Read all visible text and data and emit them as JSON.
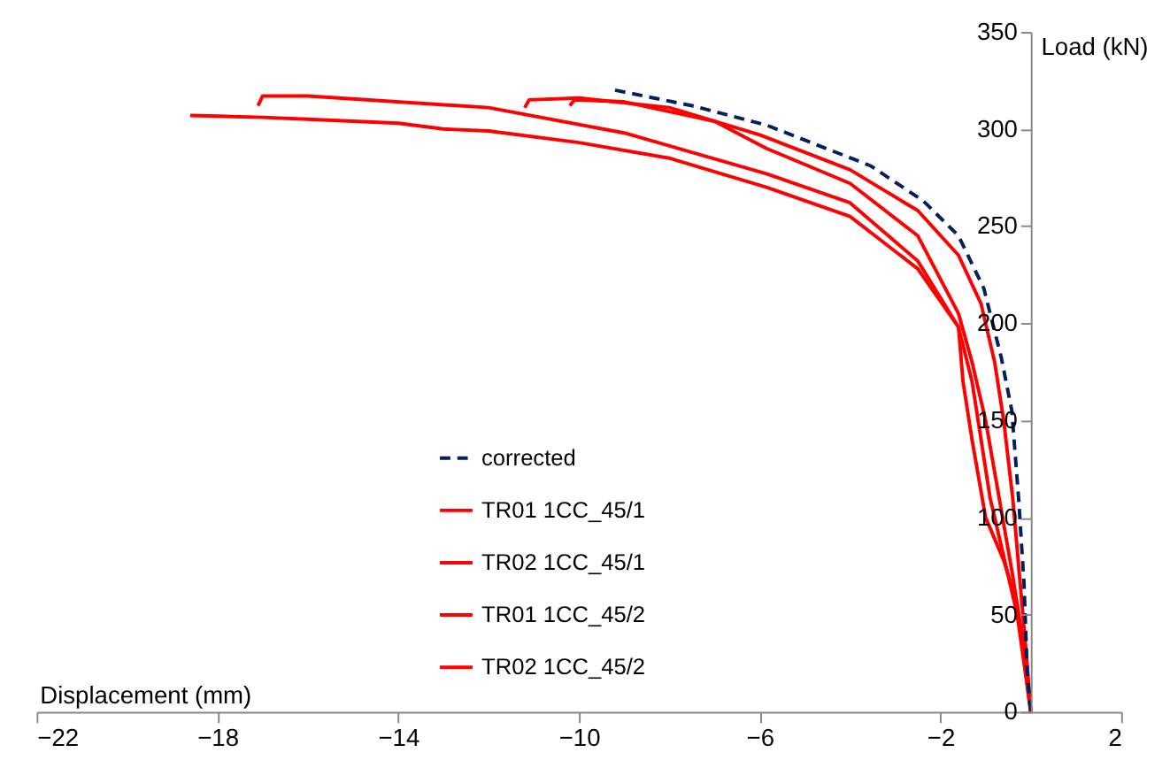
{
  "chart_data": {
    "type": "line",
    "xlabel": "Displacement (mm)",
    "ylabel": "Load (kN)",
    "xlim": [
      -22,
      2
    ],
    "xticks": [
      -22,
      -18,
      -14,
      -10,
      -6,
      -2,
      2
    ],
    "ylim": [
      0,
      350
    ],
    "yticks": [
      0,
      50,
      100,
      150,
      200,
      250,
      300,
      350
    ],
    "grid": false,
    "legend": "bottom left",
    "marker": "none",
    "series": [
      {
        "name": "corrected",
        "color": "#002060",
        "line_style": "dashed",
        "x": [
          -9.2,
          -7.5,
          -5.85,
          -3.54,
          -2.38,
          -1.6,
          -1.04,
          -0.65,
          -0.42,
          -0.27,
          -0.15,
          -0.08,
          0
        ],
        "values": [
          320,
          312,
          302,
          281,
          263,
          245,
          218,
          182,
          155,
          110,
          66,
          21,
          0
        ]
      },
      {
        "name": "TR01 1CC_45/1",
        "color": "#ff0000",
        "line_style": "solid",
        "x": [
          -11.2,
          -11.1,
          -10,
          -8,
          -6,
          -4,
          -2.5,
          -1.6,
          -1.1,
          -0.8,
          -0.6,
          -0.4,
          -0.25,
          -0.1,
          0
        ],
        "values": [
          311,
          315,
          316,
          311,
          297,
          279,
          258,
          235,
          210,
          180,
          150,
          110,
          70,
          30,
          0
        ]
      },
      {
        "name": "TR02 1CC_45/1",
        "color": "#ff0000",
        "line_style": "solid",
        "x": [
          -10.2,
          -10.1,
          -9,
          -7,
          -5.85,
          -4,
          -2.5,
          -1.6,
          -1.3,
          -1,
          -0.7,
          -0.4,
          -0.2,
          0
        ],
        "values": [
          312,
          315,
          314,
          304,
          290,
          272,
          245,
          205,
          180,
          150,
          110,
          70,
          40,
          0
        ]
      },
      {
        "name": "TR01 1CC_45/2",
        "color": "#ff0000",
        "line_style": "solid",
        "x": [
          -17.1,
          -17,
          -16,
          -12,
          -9,
          -5.85,
          -4,
          -2.5,
          -1.6,
          -1.3,
          -1.1,
          -0.9,
          -0.6,
          -0.3,
          0
        ],
        "values": [
          312,
          317,
          317,
          311,
          298,
          277,
          262,
          232,
          198,
          170,
          140,
          110,
          80,
          50,
          0
        ]
      },
      {
        "name": "TR02 1CC_45/2",
        "color": "#ff0000",
        "line_style": "solid",
        "x": [
          -18.6,
          -17,
          -16,
          -14,
          -13,
          -12,
          -10,
          -8,
          -5.85,
          -4,
          -2.5,
          -1.6,
          -1.5,
          -1.3,
          -1,
          -0.6,
          -0.3,
          0
        ],
        "values": [
          307,
          306,
          305,
          303,
          300,
          299,
          293,
          285,
          270,
          255,
          228,
          198,
          170,
          140,
          100,
          78,
          55,
          0
        ]
      }
    ]
  }
}
